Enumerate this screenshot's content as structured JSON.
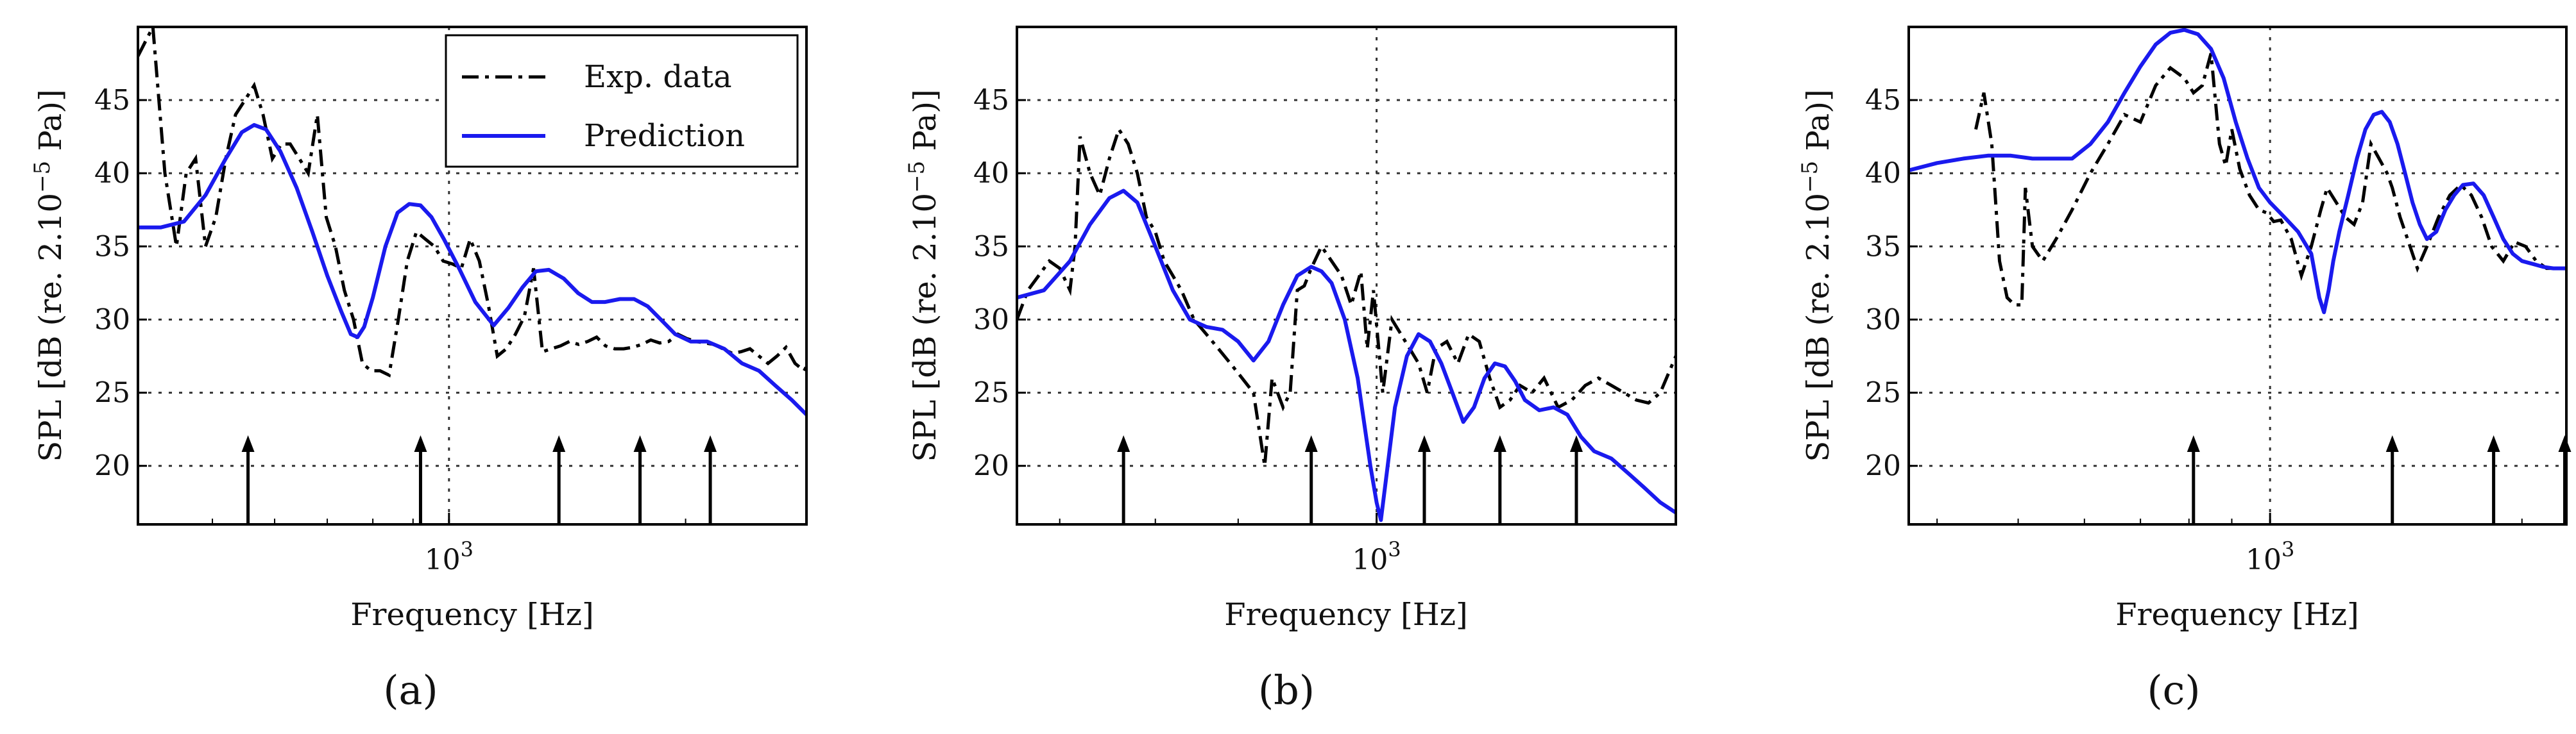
{
  "figure": {
    "panel_labels": [
      "(a)",
      "(b)",
      "(c)"
    ],
    "legend": {
      "exp_label": "Exp. data",
      "pred_label": "Prediction"
    },
    "colors": {
      "exp": "#000000",
      "pred": "#1a1aee",
      "grid": "#333333"
    }
  },
  "chart_data": [
    {
      "type": "line",
      "panel": "(a)",
      "xlabel": "Frequency [Hz]",
      "ylabel": "SPL [dB (re. 2.10^-5 Pa)]",
      "x_scale": "log",
      "xlim": [
        402,
        2850
      ],
      "ylim": [
        16,
        50
      ],
      "x_ticks": [
        {
          "value": 1000,
          "label": "10^3"
        }
      ],
      "y_ticks": [
        20,
        25,
        30,
        35,
        40,
        45
      ],
      "grid": true,
      "legend": "top-right",
      "arrows_at_hz": [
        555,
        920,
        1380,
        1750,
        2150
      ],
      "series": [
        {
          "name": "Exp. data",
          "style": "dashed",
          "x": [
            402,
            420,
            435,
            450,
            463,
            476,
            490,
            505,
            520,
            535,
            550,
            565,
            580,
            596,
            612,
            628,
            645,
            662,
            680,
            698,
            717,
            736,
            756,
            776,
            796,
            817,
            839,
            862,
            885,
            909,
            933,
            958,
            983,
            1010,
            1037,
            1064,
            1093,
            1122,
            1152,
            1183,
            1215,
            1247,
            1281,
            1315,
            1350,
            1386,
            1423,
            1462,
            1501,
            1541,
            1582,
            1625,
            1668,
            1713,
            1759,
            1806,
            1854,
            1904,
            1955,
            2007,
            2061,
            2116,
            2173,
            2231,
            2291,
            2352,
            2415,
            2480,
            2546,
            2614,
            2684,
            2756,
            2830,
            2850
          ],
          "y": [
            48,
            50,
            40,
            35,
            40,
            41,
            35,
            37,
            41,
            44,
            45,
            46,
            44,
            41,
            42,
            42,
            41,
            40,
            44,
            37,
            35,
            32,
            30,
            27,
            26.5,
            26.5,
            26.2,
            30,
            34,
            36,
            35.5,
            35,
            34,
            33.8,
            33.5,
            35.5,
            34,
            31,
            27.5,
            28,
            29,
            30.2,
            33.5,
            27.8,
            28,
            28.2,
            28.5,
            28.3,
            28.5,
            28.8,
            28.2,
            28,
            28,
            28.1,
            28.3,
            28.6,
            28.4,
            28.5,
            29,
            28.7,
            28.5,
            28.4,
            28.3,
            28,
            27.7,
            27.8,
            28,
            27.5,
            27,
            27.5,
            28.1,
            27,
            26.5,
            26.8
          ]
        },
        {
          "name": "Prediction",
          "style": "solid",
          "x": [
            402,
            430,
            460,
            490,
            520,
            545,
            565,
            585,
            610,
            640,
            670,
            700,
            730,
            750,
            765,
            780,
            800,
            830,
            860,
            890,
            920,
            950,
            985,
            1030,
            1080,
            1140,
            1190,
            1240,
            1290,
            1340,
            1400,
            1460,
            1520,
            1580,
            1650,
            1720,
            1790,
            1860,
            1940,
            2030,
            2130,
            2240,
            2360,
            2480,
            2600,
            2730,
            2850
          ],
          "y": [
            36.3,
            36.3,
            36.7,
            38.5,
            41,
            42.8,
            43.3,
            43,
            41.5,
            39,
            36,
            33,
            30.5,
            29,
            28.8,
            29.5,
            31.5,
            35,
            37.3,
            37.9,
            37.8,
            37,
            35.5,
            33.5,
            31.2,
            29.6,
            30.8,
            32.2,
            33.3,
            33.4,
            32.8,
            31.8,
            31.2,
            31.2,
            31.4,
            31.4,
            30.9,
            30,
            29,
            28.5,
            28.5,
            28,
            27,
            26.5,
            25.5,
            24.5,
            23.5
          ]
        }
      ]
    },
    {
      "type": "line",
      "panel": "(b)",
      "xlabel": "Frequency [Hz]",
      "ylabel": "SPL [dB (re. 2.10^-5 Pa)]",
      "x_scale": "log",
      "xlim": [
        560,
        1620
      ],
      "ylim": [
        16,
        50
      ],
      "x_ticks": [
        {
          "value": 1000,
          "label": "10^3"
        }
      ],
      "y_ticks": [
        20,
        25,
        30,
        35,
        40,
        45
      ],
      "grid": true,
      "arrows_at_hz": [
        665,
        900,
        1080,
        1220,
        1380
      ],
      "series": [
        {
          "name": "Exp. data",
          "style": "dashed",
          "x": [
            560,
            570,
            580,
            590,
            600,
            610,
            615,
            620,
            630,
            640,
            650,
            660,
            670,
            680,
            690,
            700,
            710,
            720,
            730,
            745,
            760,
            775,
            790,
            805,
            820,
            835,
            845,
            860,
            870,
            880,
            890,
            900,
            915,
            930,
            945,
            960,
            975,
            985,
            995,
            1010,
            1025,
            1040,
            1055,
            1070,
            1085,
            1100,
            1120,
            1140,
            1160,
            1180,
            1200,
            1220,
            1240,
            1260,
            1285,
            1310,
            1340,
            1370,
            1400,
            1430,
            1460,
            1490,
            1520,
            1550,
            1580,
            1620
          ],
          "y": [
            30,
            32,
            33,
            34,
            33.5,
            32,
            35,
            42.5,
            40,
            38.5,
            41,
            43,
            42,
            40,
            37,
            36,
            34,
            33,
            32,
            30,
            29,
            28,
            27,
            26,
            25,
            20,
            26,
            24,
            25,
            32,
            32.3,
            33.5,
            35,
            34,
            33,
            31,
            33.3,
            28,
            32,
            25,
            30,
            29,
            28,
            27,
            25,
            28,
            28.5,
            27,
            29,
            28.5,
            26,
            24,
            24.5,
            25.5,
            25,
            26,
            24,
            24.5,
            25.5,
            26,
            25.5,
            25,
            24.5,
            24.3,
            25,
            27.5
          ]
        },
        {
          "name": "Prediction",
          "style": "solid",
          "x": [
            560,
            585,
            610,
            630,
            650,
            665,
            680,
            700,
            720,
            740,
            760,
            780,
            800,
            820,
            840,
            860,
            880,
            900,
            915,
            930,
            950,
            970,
            990,
            1000,
            1007,
            1015,
            1030,
            1050,
            1070,
            1090,
            1110,
            1130,
            1150,
            1170,
            1190,
            1210,
            1230,
            1250,
            1270,
            1300,
            1330,
            1360,
            1390,
            1420,
            1460,
            1500,
            1540,
            1580,
            1620
          ],
          "y": [
            31.5,
            32,
            34,
            36.5,
            38.3,
            38.8,
            38,
            35,
            32,
            30,
            29.5,
            29.3,
            28.5,
            27.2,
            28.5,
            31,
            33,
            33.6,
            33.3,
            32.5,
            30,
            26,
            20,
            17.5,
            16.3,
            19,
            24,
            27.5,
            29,
            28.5,
            27,
            25,
            23,
            24,
            26,
            27,
            26.8,
            25.8,
            24.5,
            23.8,
            24,
            23.5,
            22,
            21,
            20.5,
            19.5,
            18.5,
            17.5,
            16.8
          ]
        }
      ]
    },
    {
      "type": "line",
      "panel": "(c)",
      "xlabel": "Frequency [Hz]",
      "ylabel": "SPL [dB (re. 2.10^-5 Pa)]",
      "x_scale": "log",
      "xlim": [
        370,
        2260
      ],
      "ylim": [
        16,
        50
      ],
      "x_ticks": [
        {
          "value": 1000,
          "label": "10^3"
        }
      ],
      "y_ticks": [
        20,
        25,
        30,
        35,
        40,
        45
      ],
      "grid": true,
      "arrows_at_hz": [
        810,
        1400,
        1850,
        2250
      ],
      "series": [
        {
          "name": "Exp. data",
          "style": "dashed",
          "x": [
            445,
            455,
            465,
            470,
            475,
            485,
            495,
            505,
            510,
            520,
            535,
            555,
            580,
            610,
            640,
            670,
            700,
            730,
            760,
            790,
            810,
            830,
            850,
            870,
            885,
            900,
            920,
            945,
            970,
            990,
            1000,
            1010,
            1030,
            1060,
            1090,
            1120,
            1150,
            1170,
            1200,
            1230,
            1260,
            1290,
            1320,
            1350,
            1380,
            1400,
            1430,
            1460,
            1500,
            1540,
            1590,
            1640,
            1690,
            1740,
            1790,
            1840,
            1900,
            1960,
            2020,
            2080,
            2140,
            2200,
            2260
          ],
          "y": [
            43,
            45.5,
            42,
            38,
            34,
            31.5,
            31,
            31,
            39,
            35,
            34,
            35.5,
            37.5,
            40,
            42,
            44,
            43.5,
            46,
            47.2,
            46.5,
            45.5,
            46,
            48.2,
            42,
            40.5,
            43,
            40.3,
            38.5,
            37.5,
            37.3,
            37,
            36.7,
            36.8,
            35.5,
            33,
            35,
            37.5,
            39,
            38,
            37,
            36.5,
            38,
            42,
            41,
            40,
            39,
            37,
            35.5,
            33.5,
            35,
            37,
            38.5,
            39.2,
            38.5,
            37,
            35,
            34,
            35.3,
            35,
            34,
            33.5,
            33.5,
            33.5
          ]
        },
        {
          "name": "Prediction",
          "style": "solid",
          "x": [
            370,
            400,
            430,
            460,
            490,
            520,
            550,
            580,
            610,
            640,
            670,
            700,
            730,
            760,
            790,
            820,
            850,
            880,
            910,
            940,
            970,
            1000,
            1040,
            1080,
            1120,
            1145,
            1160,
            1175,
            1190,
            1210,
            1240,
            1270,
            1300,
            1330,
            1360,
            1390,
            1420,
            1450,
            1480,
            1510,
            1540,
            1580,
            1620,
            1660,
            1700,
            1750,
            1800,
            1850,
            1900,
            1950,
            2000,
            2060,
            2120,
            2180,
            2260
          ],
          "y": [
            40.2,
            40.7,
            41,
            41.2,
            41.2,
            41,
            41,
            41,
            42,
            43.5,
            45.5,
            47.3,
            48.8,
            49.6,
            49.8,
            49.5,
            48.5,
            46.5,
            43.5,
            41,
            39,
            38,
            37,
            36,
            34.5,
            31.5,
            30.5,
            32,
            34,
            36,
            38.5,
            41,
            43,
            44,
            44.2,
            43.5,
            42,
            40,
            38,
            36.5,
            35.5,
            36,
            37.5,
            38.5,
            39.2,
            39.3,
            38.5,
            37,
            35.5,
            34.5,
            34,
            33.8,
            33.6,
            33.5,
            33.5
          ]
        }
      ]
    }
  ]
}
